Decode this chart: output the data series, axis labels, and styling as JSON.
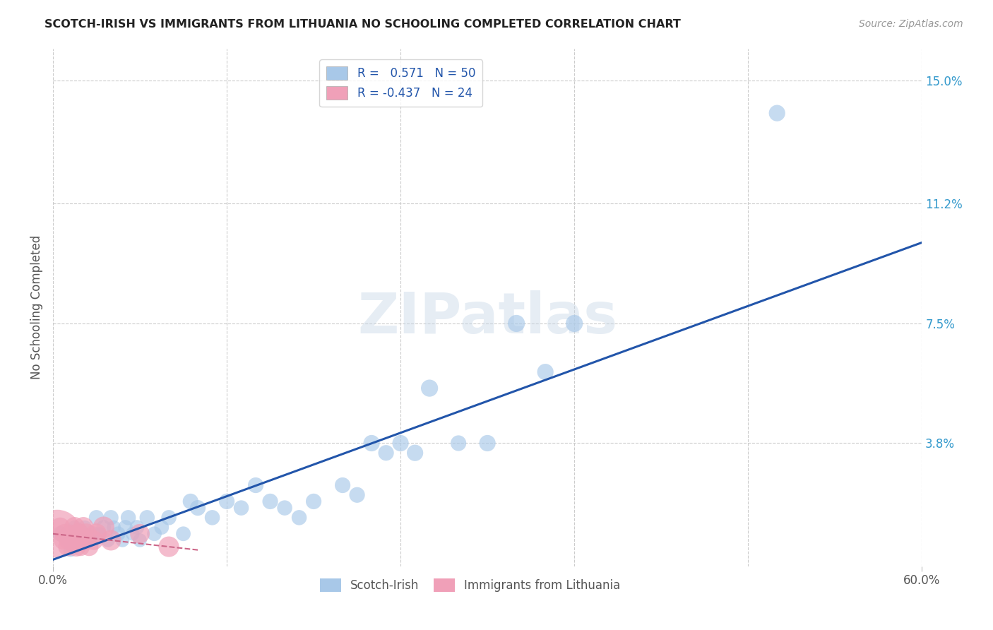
{
  "title": "SCOTCH-IRISH VS IMMIGRANTS FROM LITHUANIA NO SCHOOLING COMPLETED CORRELATION CHART",
  "source": "Source: ZipAtlas.com",
  "ylabel": "No Schooling Completed",
  "xlim": [
    0.0,
    0.6
  ],
  "ylim": [
    0.0,
    0.16
  ],
  "ytick_positions": [
    0.038,
    0.075,
    0.112,
    0.15
  ],
  "ytick_labels": [
    "3.8%",
    "7.5%",
    "11.2%",
    "15.0%"
  ],
  "r_blue": "0.571",
  "n_blue": "50",
  "r_pink": "-0.437",
  "n_pink": "24",
  "blue_color": "#a8c8e8",
  "pink_color": "#f0a0b8",
  "blue_line_color": "#2255aa",
  "pink_line_color": "#cc6688",
  "background_color": "#ffffff",
  "grid_color": "#cccccc",
  "watermark": "ZIPatlas",
  "scotch_irish_x": [
    0.005,
    0.01,
    0.012,
    0.015,
    0.018,
    0.02,
    0.022,
    0.025,
    0.028,
    0.03,
    0.032,
    0.035,
    0.038,
    0.04,
    0.042,
    0.045,
    0.048,
    0.05,
    0.052,
    0.055,
    0.058,
    0.06,
    0.065,
    0.07,
    0.075,
    0.08,
    0.09,
    0.095,
    0.1,
    0.11,
    0.12,
    0.13,
    0.14,
    0.15,
    0.16,
    0.17,
    0.18,
    0.2,
    0.21,
    0.22,
    0.23,
    0.24,
    0.25,
    0.26,
    0.28,
    0.3,
    0.32,
    0.34,
    0.36,
    0.5
  ],
  "scotch_irish_y": [
    0.01,
    0.008,
    0.005,
    0.012,
    0.008,
    0.01,
    0.012,
    0.008,
    0.01,
    0.015,
    0.01,
    0.012,
    0.008,
    0.015,
    0.012,
    0.01,
    0.008,
    0.012,
    0.015,
    0.01,
    0.012,
    0.008,
    0.015,
    0.01,
    0.012,
    0.015,
    0.01,
    0.02,
    0.018,
    0.015,
    0.02,
    0.018,
    0.025,
    0.02,
    0.018,
    0.015,
    0.02,
    0.025,
    0.022,
    0.038,
    0.035,
    0.038,
    0.035,
    0.055,
    0.038,
    0.038,
    0.075,
    0.06,
    0.075,
    0.14
  ],
  "scotch_irish_size": [
    30,
    25,
    25,
    25,
    25,
    28,
    25,
    25,
    28,
    30,
    25,
    28,
    25,
    30,
    25,
    28,
    25,
    28,
    30,
    25,
    28,
    25,
    30,
    28,
    28,
    30,
    28,
    32,
    32,
    30,
    32,
    30,
    32,
    32,
    30,
    30,
    32,
    32,
    32,
    35,
    32,
    35,
    35,
    38,
    32,
    35,
    38,
    35,
    38,
    35
  ],
  "lithuania_x": [
    0.003,
    0.005,
    0.007,
    0.008,
    0.01,
    0.011,
    0.012,
    0.013,
    0.015,
    0.016,
    0.017,
    0.018,
    0.019,
    0.02,
    0.021,
    0.022,
    0.023,
    0.025,
    0.028,
    0.03,
    0.035,
    0.04,
    0.06,
    0.08
  ],
  "lithuania_y": [
    0.01,
    0.012,
    0.008,
    0.01,
    0.006,
    0.008,
    0.01,
    0.008,
    0.012,
    0.006,
    0.008,
    0.01,
    0.006,
    0.008,
    0.012,
    0.008,
    0.01,
    0.006,
    0.008,
    0.01,
    0.012,
    0.008,
    0.01,
    0.006
  ],
  "lithuania_size": [
    300,
    50,
    45,
    50,
    45,
    50,
    45,
    50,
    55,
    50,
    50,
    55,
    45,
    50,
    55,
    50,
    55,
    45,
    50,
    55,
    60,
    55,
    50,
    55
  ],
  "blue_line_x": [
    0.0,
    0.6
  ],
  "blue_line_y": [
    0.002,
    0.1
  ],
  "pink_line_x": [
    0.0,
    0.1
  ],
  "pink_line_y": [
    0.01,
    0.005
  ]
}
